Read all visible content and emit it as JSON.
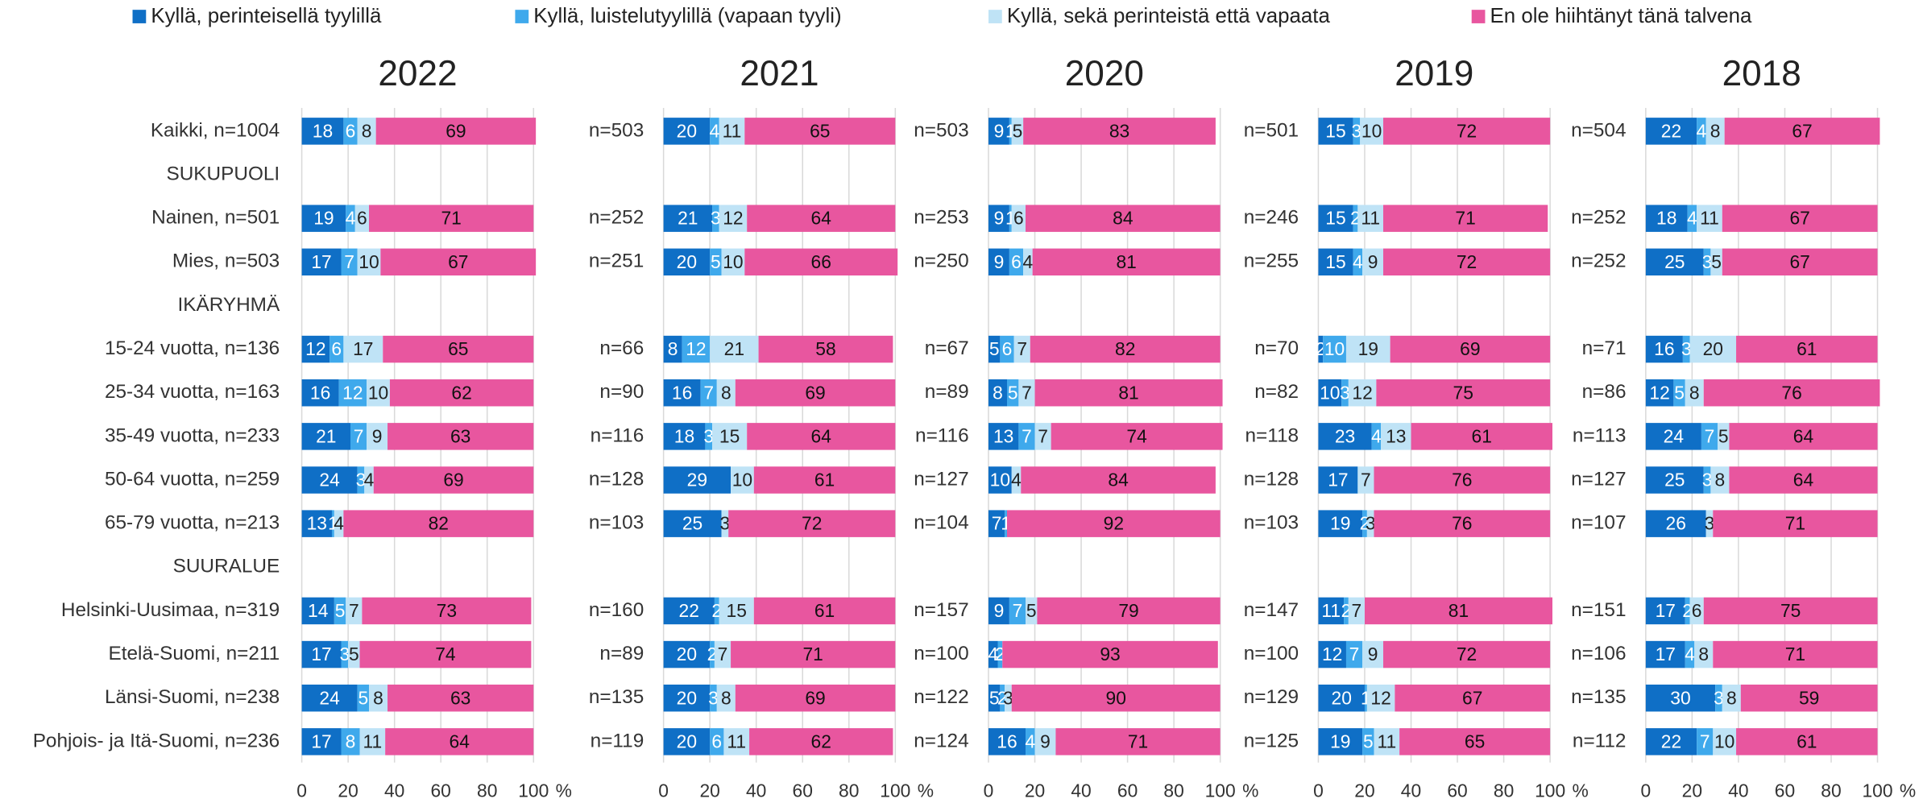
{
  "chart_data": [
    {
      "type": "bar",
      "title": "2022",
      "xlabel": "%",
      "categories": [
        "Kaikki, n=1004",
        "SUKUPUOLI",
        "Nainen, n=501",
        "Mies, n=503",
        "IKÄRYHMÄ",
        "15-24 vuotta, n=136",
        "25-34 vuotta, n=163",
        "35-49 vuotta, n=233",
        "50-64 vuotta, n=259",
        "65-79 vuotta, n=213",
        "SUURALUE",
        "Helsinki-Uusimaa, n=319",
        "Etelä-Suomi, n=211",
        "Länsi-Suomi, n=238",
        "Pohjois- ja Itä-Suomi, n=236"
      ],
      "series": [
        {
          "name": "Kyllä, perinteisellä tyylillä",
          "color": "#0f6fc6",
          "values": [
            18,
            null,
            19,
            17,
            null,
            12,
            16,
            21,
            24,
            13,
            null,
            14,
            17,
            24,
            17
          ]
        },
        {
          "name": "Kyllä, luistelutyylillä (vapaan tyyli)",
          "color": "#3fa9ec",
          "values": [
            6,
            null,
            4,
            7,
            null,
            6,
            12,
            7,
            3,
            1,
            null,
            5,
            3,
            5,
            8
          ]
        },
        {
          "name": "Kyllä, sekä perinteistä että vapaata",
          "color": "#bfe3f6",
          "values": [
            8,
            null,
            6,
            10,
            null,
            17,
            10,
            9,
            4,
            4,
            null,
            7,
            5,
            8,
            11
          ]
        },
        {
          "name": "En ole hiihtänyt tänä talvena",
          "color": "#e8569f",
          "values": [
            69,
            null,
            71,
            67,
            null,
            65,
            62,
            63,
            69,
            82,
            null,
            73,
            74,
            63,
            64
          ]
        }
      ],
      "xlim": [
        0,
        100
      ],
      "xticks": [
        0,
        20,
        40,
        60,
        80,
        100
      ],
      "grid": true
    },
    {
      "type": "bar",
      "title": "2021",
      "xlabel": "%",
      "categories": [
        "n=503",
        null,
        "n=252",
        "n=251",
        null,
        "n=66",
        "n=90",
        "n=116",
        "n=128",
        "n=103",
        null,
        "n=160",
        "n=89",
        "n=135",
        "n=119"
      ],
      "series": [
        {
          "values": [
            20,
            null,
            21,
            20,
            null,
            8,
            16,
            18,
            29,
            25,
            null,
            22,
            20,
            20,
            20
          ]
        },
        {
          "values": [
            4,
            null,
            3,
            5,
            null,
            12,
            7,
            3,
            null,
            null,
            null,
            2,
            2,
            3,
            6
          ]
        },
        {
          "values": [
            11,
            null,
            12,
            10,
            null,
            21,
            8,
            15,
            10,
            3,
            null,
            15,
            7,
            8,
            11
          ]
        },
        {
          "values": [
            65,
            null,
            64,
            66,
            null,
            58,
            69,
            64,
            61,
            72,
            null,
            61,
            71,
            69,
            62
          ]
        }
      ],
      "xlim": [
        0,
        100
      ],
      "xticks": [
        0,
        20,
        40,
        60,
        80,
        100
      ],
      "grid": true
    },
    {
      "type": "bar",
      "title": "2020",
      "xlabel": "%",
      "categories": [
        "n=503",
        null,
        "n=253",
        "n=250",
        null,
        "n=67",
        "n=89",
        "n=116",
        "n=127",
        "n=104",
        null,
        "n=157",
        "n=100",
        "n=122",
        "n=124"
      ],
      "series": [
        {
          "values": [
            9,
            null,
            9,
            9,
            null,
            5,
            8,
            13,
            10,
            7,
            null,
            9,
            4,
            5,
            16
          ]
        },
        {
          "values": [
            1,
            null,
            1,
            6,
            null,
            6,
            5,
            7,
            null,
            1,
            null,
            7,
            2,
            2,
            4
          ]
        },
        {
          "values": [
            5,
            null,
            6,
            4,
            null,
            7,
            7,
            7,
            4,
            null,
            null,
            5,
            null,
            3,
            9
          ]
        },
        {
          "values": [
            83,
            null,
            84,
            81,
            null,
            82,
            81,
            74,
            84,
            92,
            null,
            79,
            93,
            90,
            71
          ]
        }
      ],
      "xlim": [
        0,
        100
      ],
      "xticks": [
        0,
        20,
        40,
        60,
        80,
        100
      ],
      "grid": true
    },
    {
      "type": "bar",
      "title": "2019",
      "xlabel": "%",
      "categories": [
        "n=501",
        null,
        "n=246",
        "n=255",
        null,
        "n=70",
        "n=82",
        "n=118",
        "n=128",
        "n=103",
        null,
        "n=147",
        "n=100",
        "n=129",
        "n=125"
      ],
      "series": [
        {
          "values": [
            15,
            null,
            15,
            15,
            null,
            2,
            10,
            23,
            17,
            19,
            null,
            11,
            12,
            20,
            19
          ]
        },
        {
          "values": [
            3,
            null,
            2,
            4,
            null,
            10,
            3,
            4,
            null,
            2,
            null,
            2,
            7,
            1,
            5
          ]
        },
        {
          "values": [
            10,
            null,
            11,
            9,
            null,
            19,
            12,
            13,
            7,
            3,
            null,
            7,
            9,
            12,
            11
          ]
        },
        {
          "values": [
            72,
            null,
            71,
            72,
            null,
            69,
            75,
            61,
            76,
            76,
            null,
            81,
            72,
            67,
            65
          ]
        }
      ],
      "xlim": [
        0,
        100
      ],
      "xticks": [
        0,
        20,
        40,
        60,
        80,
        100
      ],
      "grid": true
    },
    {
      "type": "bar",
      "title": "2018",
      "xlabel": "%",
      "categories": [
        "n=504",
        null,
        "n=252",
        "n=252",
        null,
        "n=71",
        "n=86",
        "n=113",
        "n=127",
        "n=107",
        null,
        "n=151",
        "n=106",
        "n=135",
        "n=112"
      ],
      "series": [
        {
          "values": [
            22,
            null,
            18,
            25,
            null,
            16,
            12,
            24,
            25,
            26,
            null,
            17,
            17,
            30,
            22
          ]
        },
        {
          "values": [
            4,
            null,
            4,
            3,
            null,
            3,
            5,
            7,
            3,
            null,
            null,
            2,
            4,
            3,
            7
          ]
        },
        {
          "values": [
            8,
            null,
            11,
            5,
            null,
            20,
            8,
            5,
            8,
            3,
            null,
            6,
            8,
            8,
            10
          ]
        },
        {
          "values": [
            67,
            null,
            67,
            67,
            null,
            61,
            76,
            64,
            64,
            71,
            null,
            75,
            71,
            59,
            61
          ]
        }
      ],
      "xlim": [
        0,
        100
      ],
      "xticks": [
        0,
        20,
        40,
        60,
        80,
        100
      ],
      "grid": true
    }
  ]
}
